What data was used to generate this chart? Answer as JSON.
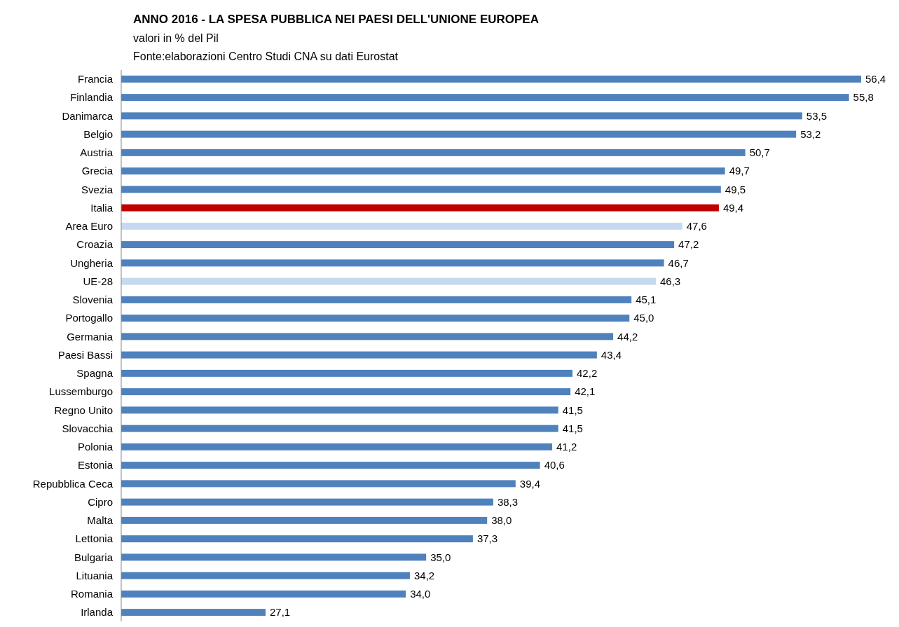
{
  "chart_data": {
    "type": "bar",
    "orientation": "horizontal",
    "title": "ANNO 2016 - LA SPESA PUBBLICA NEI PAESI DELL'UNIONE EUROPEA",
    "subtitle": "valori in % del Pil",
    "annotations": [
      "Fonte:elaborazioni Centro Studi CNA su dati Eurostat"
    ],
    "categories": [
      "Francia",
      "Finlandia",
      "Danimarca",
      "Belgio",
      "Austria",
      "Grecia",
      "Svezia",
      "Italia",
      "Area Euro",
      "Croazia",
      "Ungheria",
      "UE-28",
      "Slovenia",
      "Portogallo",
      "Germania",
      "Paesi Bassi",
      "Spagna",
      "Lussemburgo",
      "Regno Unito",
      "Slovacchia",
      "Polonia",
      "Estonia",
      "Repubblica Ceca",
      "Cipro",
      "Malta",
      "Lettonia",
      "Bulgaria",
      "Lituania",
      "Romania",
      "Irlanda"
    ],
    "values": [
      56.4,
      55.8,
      53.5,
      53.2,
      50.7,
      49.7,
      49.5,
      49.4,
      47.6,
      47.2,
      46.7,
      46.3,
      45.1,
      45.0,
      44.2,
      43.4,
      42.2,
      42.1,
      41.5,
      41.5,
      41.2,
      40.6,
      39.4,
      38.3,
      38.0,
      37.3,
      35.0,
      34.2,
      34.0,
      27.1
    ],
    "value_labels": [
      "56,4",
      "55,8",
      "53,5",
      "53,2",
      "50,7",
      "49,7",
      "49,5",
      "49,4",
      "47,6",
      "47,2",
      "46,7",
      "46,3",
      "45,1",
      "45,0",
      "44,2",
      "43,4",
      "42,2",
      "42,1",
      "41,5",
      "41,5",
      "41,2",
      "40,6",
      "39,4",
      "38,3",
      "38,0",
      "37,3",
      "35,0",
      "34,2",
      "34,0",
      "27,1"
    ],
    "colors": [
      "#4f81bd",
      "#4f81bd",
      "#4f81bd",
      "#4f81bd",
      "#4f81bd",
      "#4f81bd",
      "#4f81bd",
      "#c00000",
      "#c6d9f1",
      "#4f81bd",
      "#4f81bd",
      "#c6d9f1",
      "#4f81bd",
      "#4f81bd",
      "#4f81bd",
      "#4f81bd",
      "#4f81bd",
      "#4f81bd",
      "#4f81bd",
      "#4f81bd",
      "#4f81bd",
      "#4f81bd",
      "#4f81bd",
      "#4f81bd",
      "#4f81bd",
      "#4f81bd",
      "#4f81bd",
      "#4f81bd",
      "#4f81bd",
      "#4f81bd"
    ],
    "xlim": [
      20,
      56.4
    ],
    "tick_labels": "y"
  }
}
